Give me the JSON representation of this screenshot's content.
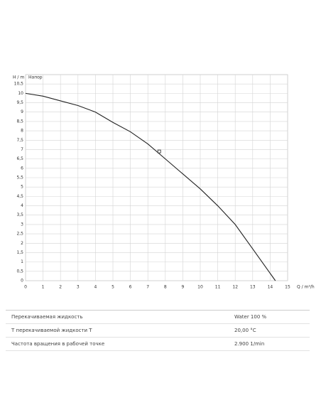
{
  "chart_data": {
    "type": "line",
    "y_label": "H / m",
    "x_label": "Q / m³/h",
    "x": [
      0,
      1,
      2,
      3,
      4,
      5,
      6,
      7,
      8,
      9,
      10,
      11,
      12,
      13,
      14.3
    ],
    "series": [
      {
        "name": "Напор",
        "color": "#222222",
        "values": [
          10,
          9.85,
          9.6,
          9.35,
          9.0,
          8.45,
          7.95,
          7.3,
          6.5,
          5.7,
          4.9,
          4.0,
          3.0,
          1.7,
          0
        ]
      }
    ],
    "operating_point": {
      "x": 7.65,
      "y": 6.9
    },
    "xlim": [
      0,
      15
    ],
    "ylim": [
      0,
      11
    ],
    "xticks": [
      0,
      1,
      2,
      3,
      4,
      5,
      6,
      7,
      8,
      9,
      10,
      11,
      12,
      13,
      14,
      15
    ],
    "yticks": [
      0,
      {
        "value": 0.5,
        "label": "0,5"
      },
      1,
      {
        "value": 1.5,
        "label": "1,5"
      },
      2,
      {
        "value": 2.5,
        "label": "2,5"
      },
      3,
      {
        "value": 3.5,
        "label": "3,5"
      },
      4,
      {
        "value": 4.5,
        "label": "4,5"
      },
      5,
      {
        "value": 5.5,
        "label": "5,5"
      },
      6,
      {
        "value": 6.5,
        "label": "6,5"
      },
      7,
      {
        "value": 7.5,
        "label": "7,5"
      },
      8,
      {
        "value": 8.5,
        "label": "8,5"
      },
      9,
      {
        "value": 9.5,
        "label": "9,5"
      },
      10,
      {
        "value": 10.5,
        "label": "10,5"
      }
    ],
    "grid": true
  },
  "table": {
    "rows": [
      [
        "Перекачиваемая жидкость",
        "Water 100 %"
      ],
      [
        "T перекачиваемой жидкости T",
        "20,00 °C"
      ],
      [
        "Частота вращения в рабочей точке",
        "2.900 1/min"
      ]
    ]
  }
}
